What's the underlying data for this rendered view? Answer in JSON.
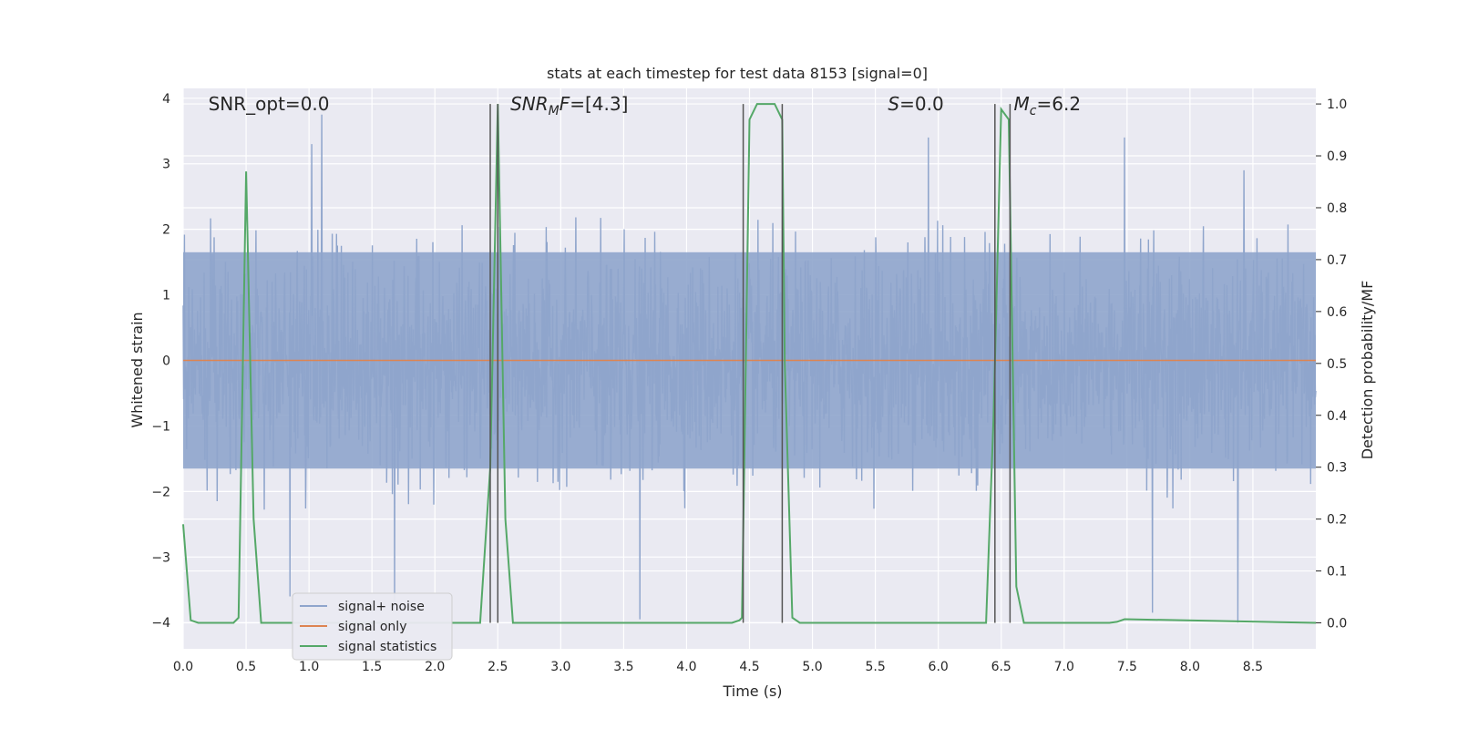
{
  "chart_data": {
    "type": "line",
    "title": "stats at each timestep for test data 8153 [signal=0]",
    "xlabel": "Time (s)",
    "ylabel": "Whitened strain",
    "ylabel_right": "Detection probability/MF",
    "xlim": [
      0,
      9.0
    ],
    "ylim": [
      -4.4,
      4.15
    ],
    "ylim_right": [
      -0.05,
      1.03
    ],
    "x_ticks": [
      "0.0",
      "0.5",
      "1.0",
      "1.5",
      "2.0",
      "2.5",
      "3.0",
      "3.5",
      "4.0",
      "4.5",
      "5.0",
      "5.5",
      "6.0",
      "6.5",
      "7.0",
      "7.5",
      "8.0",
      "8.5"
    ],
    "y_ticks": [
      "4",
      "3",
      "2",
      "1",
      "0",
      "−1",
      "−2",
      "−3",
      "−4"
    ],
    "y_right_ticks": [
      "1.0",
      "0.9",
      "0.8",
      "0.7",
      "0.6",
      "0.5",
      "0.4",
      "0.3",
      "0.2",
      "0.1",
      "0.0"
    ],
    "grid": true,
    "legend_position": "lower-left",
    "colors": {
      "plot_bg": "#eaeaf2",
      "grid": "#ffffff",
      "noise": "#8fa5cc",
      "signal_only": "#dd8452",
      "statistics": "#55a868",
      "vlines": "#555555"
    },
    "annotations": [
      {
        "text": "SNR_opt=0.0",
        "x": 0.2
      },
      {
        "text": "SNR_MF=[4.3]",
        "x": 2.6
      },
      {
        "text": "S=0.0",
        "x": 5.6
      },
      {
        "text": "M_c=6.2",
        "x": 6.6
      }
    ],
    "series": [
      {
        "name": "signal+ noise",
        "axis": "left",
        "envelope": {
          "dense_band": [
            -1.65,
            1.65
          ],
          "typical_spike_range": [
            -2.3,
            2.2
          ],
          "max_spikes": [
            [
              1.1,
              3.75
            ],
            [
              1.02,
              3.3
            ],
            [
              5.92,
              3.4
            ],
            [
              7.48,
              3.4
            ],
            [
              8.43,
              2.9
            ]
          ],
          "min_spikes": [
            [
              1.68,
              -3.8
            ],
            [
              3.63,
              -3.95
            ],
            [
              8.38,
              -4.0
            ],
            [
              7.7,
              -3.85
            ],
            [
              0.85,
              -3.6
            ]
          ]
        }
      },
      {
        "name": "signal only",
        "axis": "left",
        "x": [
          0.0,
          9.0
        ],
        "y": [
          0.0,
          0.0
        ]
      },
      {
        "name": "signal statistics",
        "axis": "right",
        "x": [
          0.0,
          0.06,
          0.12,
          0.4,
          0.44,
          0.5,
          0.56,
          0.62,
          2.36,
          2.44,
          2.5,
          2.56,
          2.62,
          4.36,
          4.42,
          4.44,
          4.5,
          4.56,
          4.7,
          4.76,
          4.78,
          4.84,
          4.9,
          6.38,
          6.44,
          6.5,
          6.56,
          6.62,
          6.68,
          7.36,
          7.42,
          7.48,
          9.0
        ],
        "y": [
          0.19,
          0.005,
          0.0,
          0.0,
          0.01,
          0.87,
          0.2,
          0.0,
          0.0,
          0.3,
          1.0,
          0.2,
          0.0,
          0.0,
          0.005,
          0.01,
          0.97,
          1.0,
          1.0,
          0.97,
          0.5,
          0.01,
          0.0,
          0.0,
          0.4,
          0.99,
          0.97,
          0.07,
          0.0,
          0.0,
          0.002,
          0.007,
          0.0
        ]
      }
    ],
    "vlines": [
      2.44,
      2.5,
      4.45,
      4.76,
      6.45,
      6.57
    ],
    "legend": [
      {
        "label": "signal+ noise",
        "color": "#8fa5cc"
      },
      {
        "label": "signal only",
        "color": "#dd8452"
      },
      {
        "label": "signal statistics",
        "color": "#55a868"
      }
    ]
  }
}
